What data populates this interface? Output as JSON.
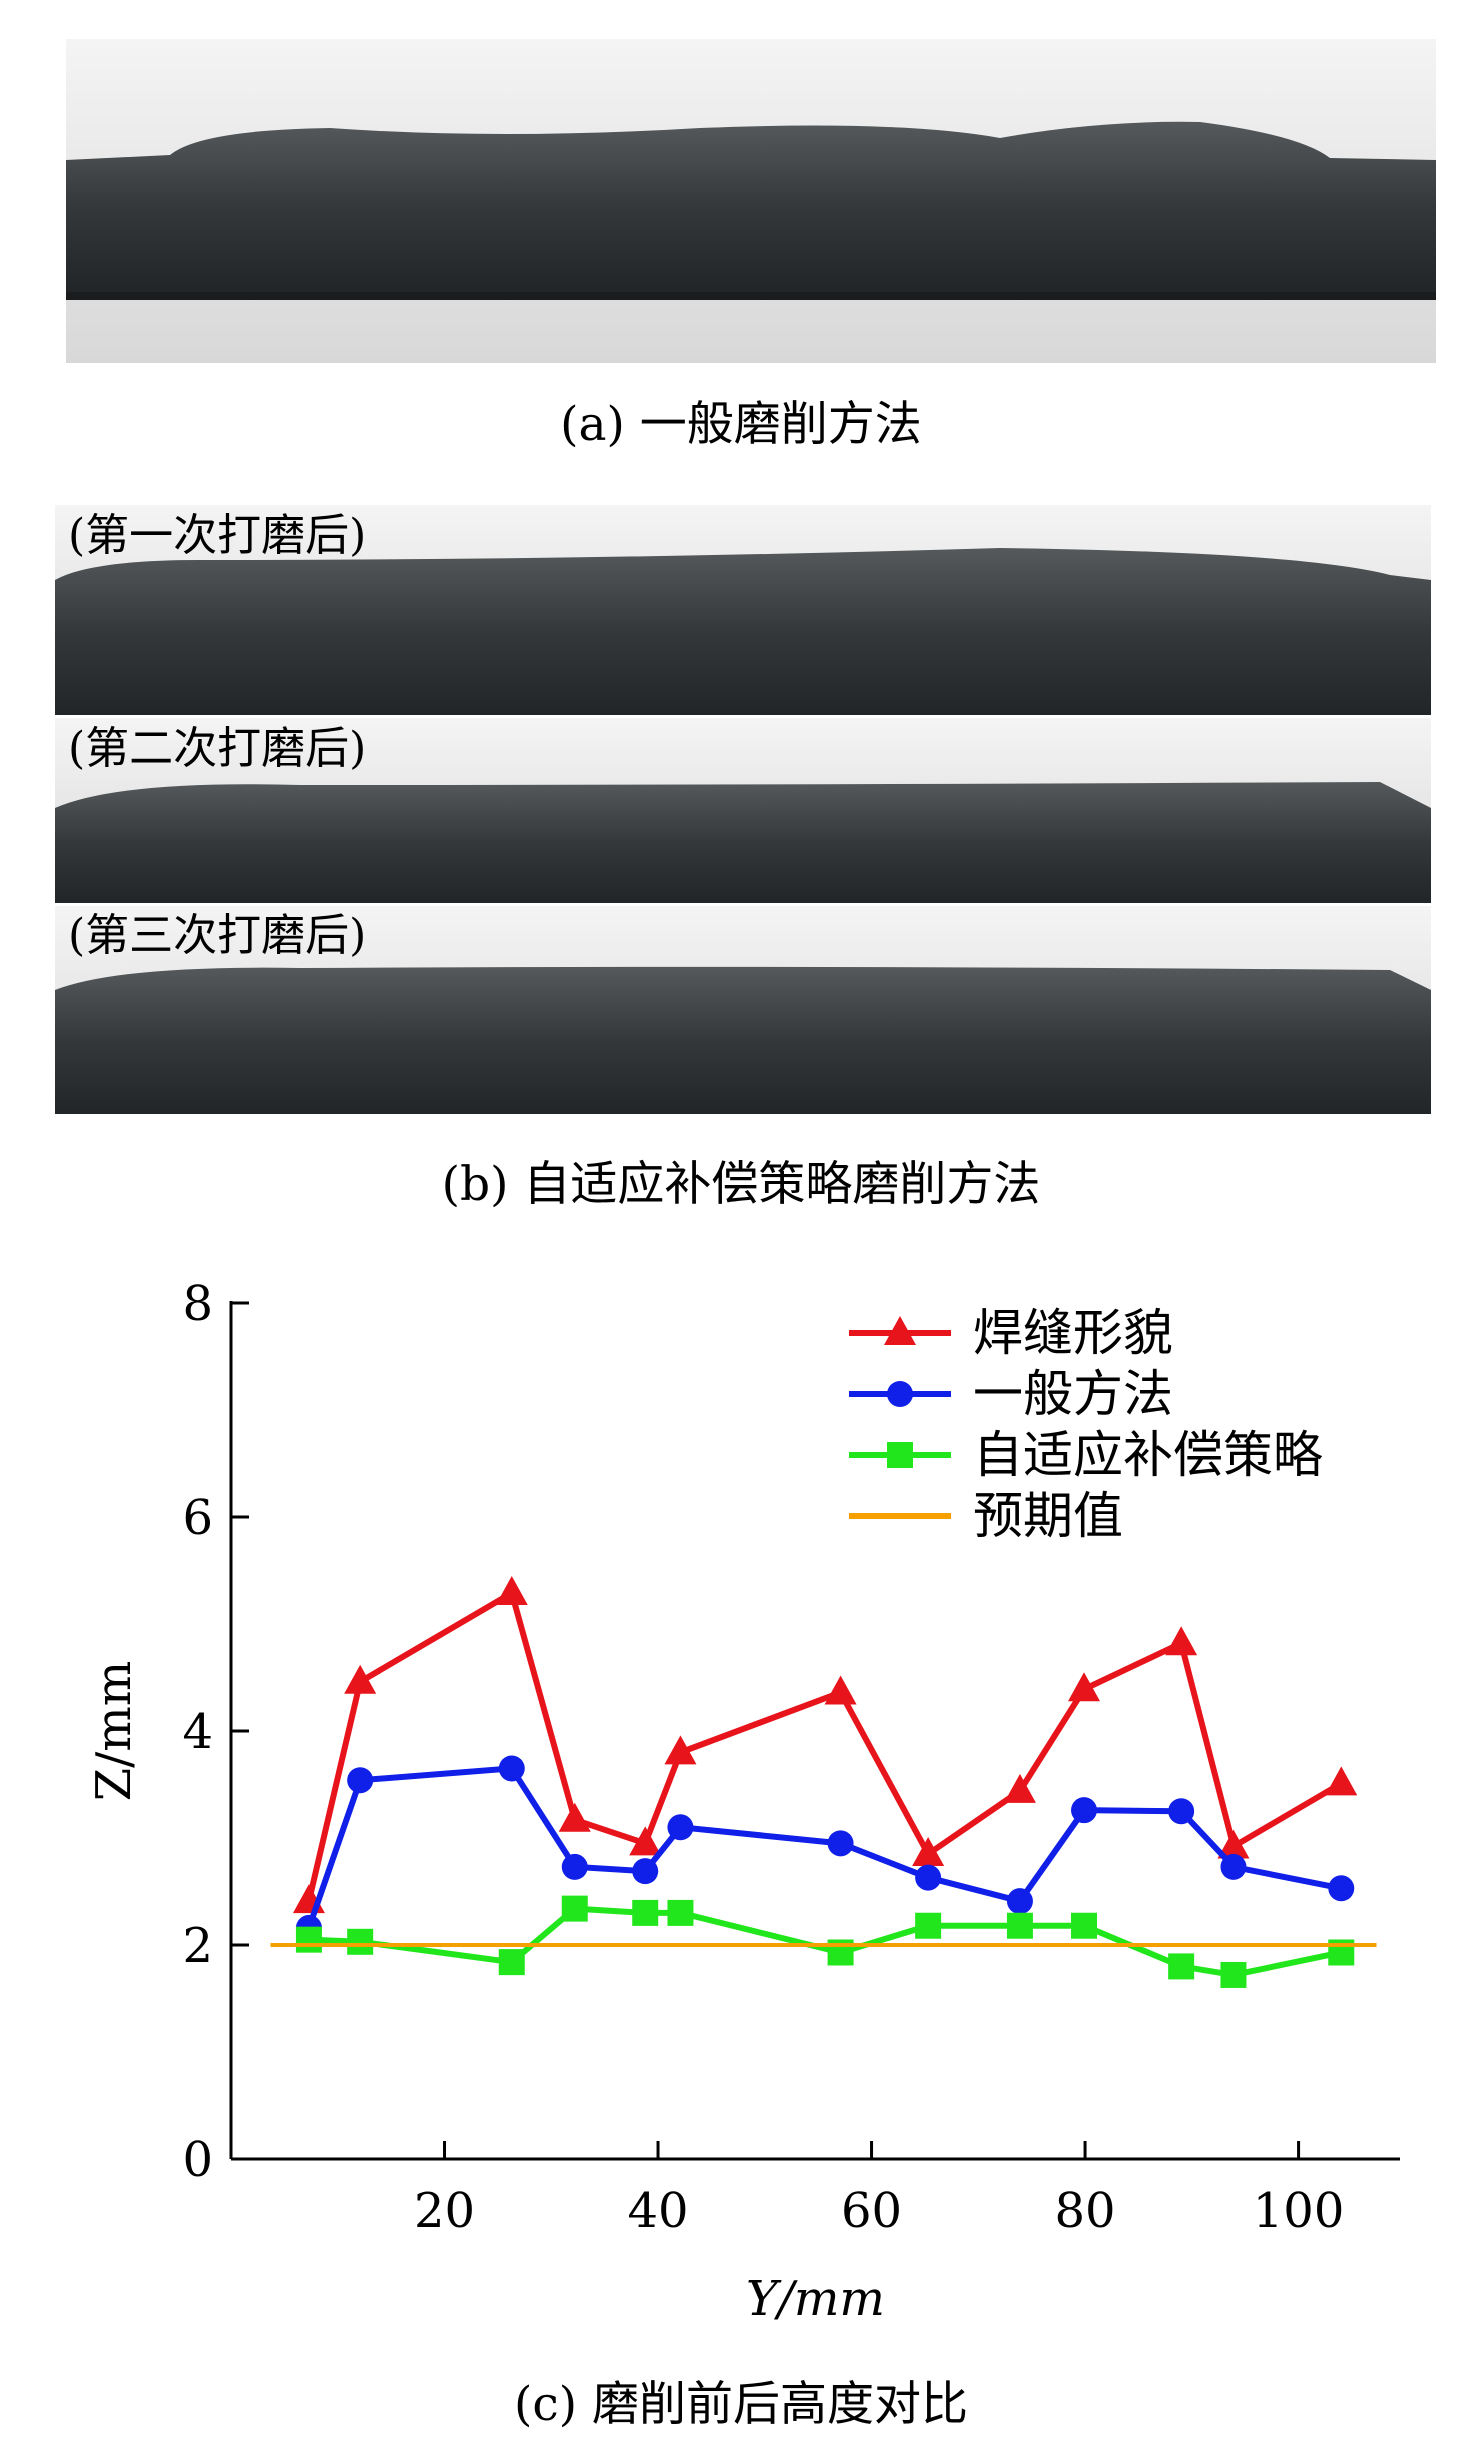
{
  "figure": {
    "panel_a": {
      "caption": "(a) 一般磨削方法"
    },
    "panel_b": {
      "labels": [
        "(第一次打磨后)",
        "(第二次打磨后)",
        "(第三次打磨后)"
      ],
      "caption": "(b) 自适应补偿策略磨削方法"
    },
    "panel_c": {
      "caption": "(c) 磨削前后高度对比"
    }
  },
  "chart_data": {
    "type": "line",
    "x_label": "Y/mm",
    "y_label": "Z/mm",
    "xlim": [
      0,
      109.5
    ],
    "ylim": [
      0,
      8
    ],
    "xticks": [
      20,
      40,
      60,
      80,
      100
    ],
    "yticks": [
      0,
      2,
      4,
      6,
      8
    ],
    "grid": false,
    "legend": "upper right",
    "series": [
      {
        "name": "焊缝形貌",
        "color": "#e8141b",
        "marker": "triangle",
        "x": [
          7.3,
          12.1,
          26.3,
          32.2,
          38.8,
          42.1,
          57.1,
          65.3,
          73.9,
          79.9,
          89.0,
          93.9,
          104
        ],
        "values": [
          2.41,
          4.46,
          5.29,
          3.17,
          2.95,
          3.8,
          4.36,
          2.85,
          3.44,
          4.39,
          4.82,
          2.92,
          3.51
        ]
      },
      {
        "name": "一般方法",
        "color": "#1020e8",
        "marker": "circle",
        "x": [
          7.3,
          12.1,
          26.3,
          32.2,
          38.8,
          42.1,
          57.1,
          65.3,
          73.9,
          79.9,
          89.0,
          93.9,
          104
        ],
        "values": [
          2.16,
          3.54,
          3.65,
          2.73,
          2.69,
          3.1,
          2.95,
          2.63,
          2.41,
          3.26,
          3.25,
          2.73,
          2.53
        ]
      },
      {
        "name": "自适应补偿策略",
        "color": "#22e61c",
        "marker": "square",
        "x": [
          7.3,
          12.1,
          26.3,
          32.2,
          38.8,
          42.1,
          57.1,
          65.3,
          73.9,
          79.9,
          89.0,
          93.9,
          104
        ],
        "values": [
          2.05,
          2.03,
          1.84,
          2.34,
          2.3,
          2.3,
          1.93,
          2.18,
          2.18,
          2.18,
          1.8,
          1.72,
          1.93
        ]
      },
      {
        "name": "预期值",
        "color": "#f5a000",
        "marker": "none",
        "x": [
          3.7,
          107.3
        ],
        "values": [
          2,
          2
        ]
      }
    ]
  }
}
